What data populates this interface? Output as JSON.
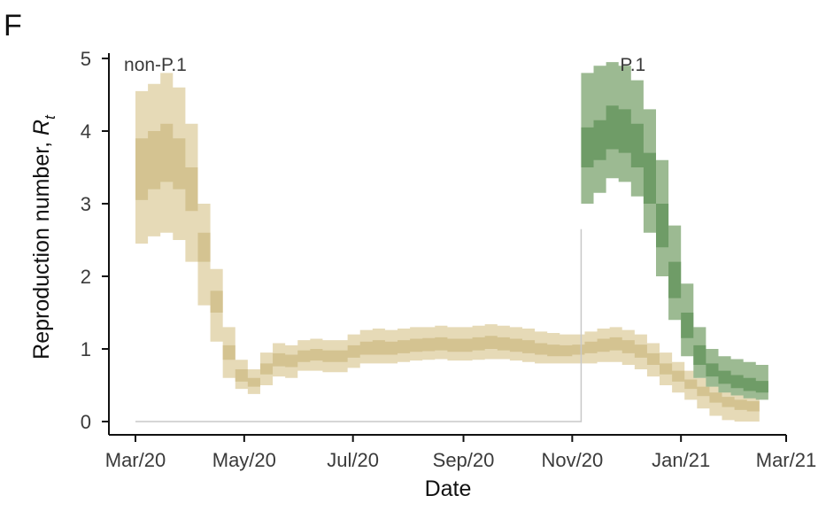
{
  "panel_label": "F",
  "chart_data": {
    "type": "area",
    "title": "",
    "xlabel": "Date",
    "ylabel_main": "Reproduction number, ",
    "ylabel_symbol": "R",
    "ylabel_subscript": "t",
    "xlim": [
      "2020-03-01",
      "2021-03-01"
    ],
    "ylim": [
      0,
      5
    ],
    "x_ticks": [
      {
        "date": "2020-03-01",
        "label": "Mar/20"
      },
      {
        "date": "2020-05-01",
        "label": "May/20"
      },
      {
        "date": "2020-07-01",
        "label": "Jul/20"
      },
      {
        "date": "2020-09-01",
        "label": "Sep/20"
      },
      {
        "date": "2020-11-01",
        "label": "Nov/20"
      },
      {
        "date": "2021-01-01",
        "label": "Jan/21"
      },
      {
        "date": "2021-03-01",
        "label": "Mar/21"
      }
    ],
    "y_ticks": [
      {
        "value": 0,
        "label": "0"
      },
      {
        "value": 1,
        "label": "1"
      },
      {
        "value": 2,
        "label": "2"
      },
      {
        "value": 3,
        "label": "3"
      },
      {
        "value": 4,
        "label": "4"
      },
      {
        "value": 5,
        "label": "5"
      }
    ],
    "grid": false,
    "baseline": {
      "y": 0,
      "from": "2020-03-01",
      "to": "2020-11-06",
      "vertical_to": 2.65,
      "color": "#c8c8c8"
    },
    "series": [
      {
        "name": "non-P.1",
        "label_date": "2020-03-03",
        "label_value": 4.95,
        "outer_color": "#e6dab7",
        "inner_color": "#d4c391",
        "x": [
          "2020-03-01",
          "2020-03-08",
          "2020-03-15",
          "2020-03-22",
          "2020-03-29",
          "2020-04-05",
          "2020-04-12",
          "2020-04-19",
          "2020-04-26",
          "2020-05-03",
          "2020-05-10",
          "2020-05-17",
          "2020-05-24",
          "2020-05-31",
          "2020-06-07",
          "2020-06-14",
          "2020-06-21",
          "2020-06-28",
          "2020-07-05",
          "2020-07-12",
          "2020-07-19",
          "2020-07-26",
          "2020-08-02",
          "2020-08-09",
          "2020-08-16",
          "2020-08-23",
          "2020-08-30",
          "2020-09-06",
          "2020-09-13",
          "2020-09-20",
          "2020-09-27",
          "2020-10-04",
          "2020-10-11",
          "2020-10-18",
          "2020-10-25",
          "2020-11-01",
          "2020-11-08",
          "2020-11-15",
          "2020-11-22",
          "2020-11-29",
          "2020-12-06",
          "2020-12-13",
          "2020-12-20",
          "2020-12-27",
          "2021-01-03",
          "2021-01-10",
          "2021-01-17",
          "2021-01-24",
          "2021-01-31",
          "2021-02-07"
        ],
        "outer_low": [
          2.45,
          2.55,
          2.6,
          2.5,
          2.2,
          1.6,
          1.1,
          0.6,
          0.45,
          0.38,
          0.5,
          0.62,
          0.6,
          0.7,
          0.7,
          0.68,
          0.68,
          0.74,
          0.8,
          0.8,
          0.8,
          0.82,
          0.84,
          0.85,
          0.86,
          0.84,
          0.84,
          0.85,
          0.86,
          0.86,
          0.84,
          0.82,
          0.8,
          0.8,
          0.8,
          0.8,
          0.8,
          0.82,
          0.82,
          0.78,
          0.72,
          0.62,
          0.5,
          0.4,
          0.3,
          0.18,
          0.08,
          0.02,
          0.0,
          0.0
        ],
        "outer_high": [
          4.55,
          4.65,
          4.8,
          4.6,
          4.1,
          3.0,
          2.1,
          1.3,
          0.85,
          0.72,
          0.95,
          1.08,
          1.05,
          1.12,
          1.14,
          1.12,
          1.12,
          1.2,
          1.26,
          1.28,
          1.26,
          1.28,
          1.3,
          1.3,
          1.32,
          1.3,
          1.3,
          1.32,
          1.34,
          1.32,
          1.3,
          1.28,
          1.24,
          1.22,
          1.2,
          1.2,
          1.24,
          1.28,
          1.3,
          1.26,
          1.2,
          1.08,
          0.95,
          0.82,
          0.7,
          0.6,
          0.5,
          0.42,
          0.38,
          0.36
        ],
        "inner_low": [
          3.05,
          3.2,
          3.3,
          3.2,
          2.9,
          2.2,
          1.5,
          0.85,
          0.55,
          0.48,
          0.65,
          0.76,
          0.75,
          0.82,
          0.84,
          0.82,
          0.82,
          0.88,
          0.92,
          0.92,
          0.92,
          0.94,
          0.96,
          0.97,
          0.98,
          0.96,
          0.96,
          0.98,
          1.0,
          0.98,
          0.96,
          0.94,
          0.92,
          0.9,
          0.9,
          0.92,
          0.94,
          0.96,
          0.98,
          0.94,
          0.88,
          0.78,
          0.65,
          0.55,
          0.45,
          0.35,
          0.26,
          0.2,
          0.16,
          0.14
        ],
        "inner_high": [
          3.9,
          4.0,
          4.1,
          3.9,
          3.5,
          2.6,
          1.8,
          1.05,
          0.72,
          0.6,
          0.8,
          0.94,
          0.92,
          0.98,
          1.0,
          0.98,
          0.98,
          1.05,
          1.1,
          1.12,
          1.1,
          1.12,
          1.14,
          1.15,
          1.16,
          1.14,
          1.14,
          1.16,
          1.18,
          1.16,
          1.14,
          1.12,
          1.08,
          1.06,
          1.05,
          1.06,
          1.1,
          1.14,
          1.16,
          1.12,
          1.06,
          0.94,
          0.8,
          0.7,
          0.58,
          0.48,
          0.4,
          0.34,
          0.3,
          0.28
        ]
      },
      {
        "name": "P.1",
        "label_date": "2020-12-05",
        "label_value": 4.95,
        "outer_color": "#9cba92",
        "inner_color": "#6f9c67",
        "x": [
          "2020-11-06",
          "2020-11-13",
          "2020-11-20",
          "2020-11-27",
          "2020-12-04",
          "2020-12-11",
          "2020-12-18",
          "2020-12-25",
          "2021-01-01",
          "2021-01-08",
          "2021-01-15",
          "2021-01-22",
          "2021-01-29",
          "2021-02-05",
          "2021-02-12"
        ],
        "outer_low": [
          3.0,
          3.15,
          3.35,
          3.3,
          3.1,
          2.6,
          2.0,
          1.4,
          0.9,
          0.6,
          0.48,
          0.4,
          0.36,
          0.32,
          0.3
        ],
        "outer_high": [
          4.8,
          4.9,
          4.95,
          4.9,
          4.7,
          4.3,
          3.6,
          2.7,
          1.9,
          1.3,
          1.0,
          0.9,
          0.86,
          0.82,
          0.78
        ],
        "inner_low": [
          3.5,
          3.6,
          3.75,
          3.7,
          3.5,
          3.0,
          2.4,
          1.7,
          1.15,
          0.78,
          0.62,
          0.52,
          0.46,
          0.42,
          0.4
        ],
        "inner_high": [
          4.05,
          4.15,
          4.35,
          4.3,
          4.1,
          3.7,
          3.0,
          2.2,
          1.5,
          1.05,
          0.8,
          0.7,
          0.64,
          0.6,
          0.56
        ]
      }
    ]
  }
}
